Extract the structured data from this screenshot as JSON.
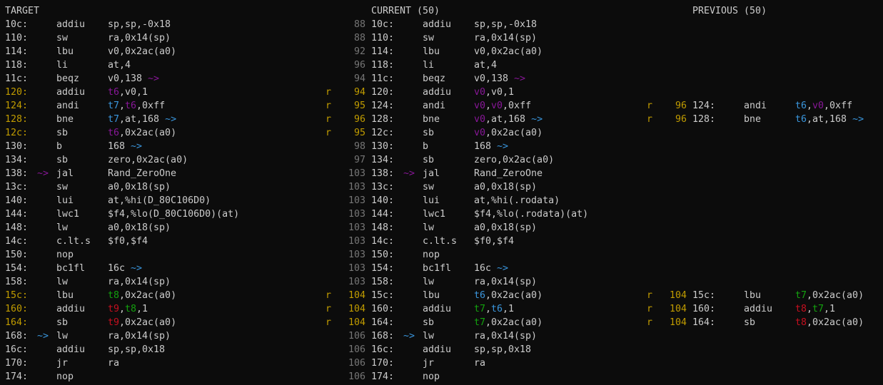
{
  "headers": {
    "target": "TARGET",
    "current": "CURRENT (50)",
    "previous": "PREVIOUS (50)"
  },
  "colors": {
    "text": "#cccccc",
    "gray": "#767676",
    "yellow": "#c19c00",
    "purple": "#881798",
    "blue": "#3a96dd",
    "green": "#13a10e",
    "red": "#c50f1f",
    "background": "#0c0c0c"
  },
  "rows": [
    {
      "target": {
        "addr": "10c:",
        "op": "addiu",
        "args": [
          [
            "sp,sp,-0x18",
            ""
          ]
        ]
      },
      "current": {
        "line": "88",
        "addr": "10c:",
        "op": "addiu",
        "args": [
          [
            "sp,sp,-0x18",
            ""
          ]
        ]
      }
    },
    {
      "target": {
        "addr": "110:",
        "op": "sw",
        "args": [
          [
            "ra,0x14(sp)",
            ""
          ]
        ]
      },
      "current": {
        "line": "88",
        "addr": "110:",
        "op": "sw",
        "args": [
          [
            "ra,0x14(sp)",
            ""
          ]
        ]
      }
    },
    {
      "target": {
        "addr": "114:",
        "op": "lbu",
        "args": [
          [
            "v0,0x2ac(a0)",
            ""
          ]
        ]
      },
      "current": {
        "line": "92",
        "addr": "114:",
        "op": "lbu",
        "args": [
          [
            "v0,0x2ac(a0)",
            ""
          ]
        ]
      }
    },
    {
      "target": {
        "addr": "118:",
        "op": "li",
        "args": [
          [
            "at,4",
            ""
          ]
        ]
      },
      "current": {
        "line": "96",
        "addr": "118:",
        "op": "li",
        "args": [
          [
            "at,4",
            ""
          ]
        ]
      }
    },
    {
      "target": {
        "addr": "11c:",
        "op": "beqz",
        "args": [
          [
            "v0,138 ",
            ""
          ],
          [
            "~>",
            "purple"
          ]
        ]
      },
      "current": {
        "line": "94",
        "addr": "11c:",
        "op": "beqz",
        "args": [
          [
            "v0,138 ",
            ""
          ],
          [
            "~>",
            "purple"
          ]
        ]
      }
    },
    {
      "target": {
        "addr": "120:",
        "hl": true,
        "op": "addiu",
        "args": [
          [
            "t6",
            "purple"
          ],
          [
            ",v0,1",
            ""
          ]
        ]
      },
      "current": {
        "flag": "r",
        "line": "94",
        "addr": "120:",
        "op": "addiu",
        "args": [
          [
            "v0",
            "purple"
          ],
          [
            ",v0,1",
            ""
          ]
        ]
      }
    },
    {
      "target": {
        "addr": "124:",
        "hl": true,
        "op": "andi",
        "args": [
          [
            "t7",
            "blue"
          ],
          [
            ",",
            ""
          ],
          [
            "t6",
            "purple"
          ],
          [
            ",0xff",
            ""
          ]
        ]
      },
      "current": {
        "flag": "r",
        "line": "95",
        "addr": "124:",
        "op": "andi",
        "args": [
          [
            "v0",
            "purple"
          ],
          [
            ",",
            ""
          ],
          [
            "v0",
            "purple"
          ],
          [
            ",0xff",
            ""
          ]
        ]
      },
      "previous": {
        "flag": "r",
        "line": "96",
        "addr": "124:",
        "op": "andi",
        "args": [
          [
            "t6",
            "blue"
          ],
          [
            ",",
            ""
          ],
          [
            "v0",
            "purple"
          ],
          [
            ",0xff",
            ""
          ]
        ]
      }
    },
    {
      "target": {
        "addr": "128:",
        "hl": true,
        "op": "bne",
        "args": [
          [
            "t7",
            "blue"
          ],
          [
            ",at,168 ",
            ""
          ],
          [
            "~>",
            "blue"
          ]
        ]
      },
      "current": {
        "flag": "r",
        "line": "96",
        "addr": "128:",
        "op": "bne",
        "args": [
          [
            "v0",
            "purple"
          ],
          [
            ",at,168 ",
            ""
          ],
          [
            "~>",
            "blue"
          ]
        ]
      },
      "previous": {
        "flag": "r",
        "line": "96",
        "addr": "128:",
        "op": "bne",
        "args": [
          [
            "t6",
            "blue"
          ],
          [
            ",at,168 ",
            ""
          ],
          [
            "~>",
            "blue"
          ]
        ]
      }
    },
    {
      "target": {
        "addr": "12c:",
        "hl": true,
        "op": "sb",
        "args": [
          [
            "t6",
            "purple"
          ],
          [
            ",0x2ac(a0)",
            ""
          ]
        ]
      },
      "current": {
        "flag": "r",
        "line": "95",
        "addr": "12c:",
        "op": "sb",
        "args": [
          [
            "v0",
            "purple"
          ],
          [
            ",0x2ac(a0)",
            ""
          ]
        ]
      }
    },
    {
      "target": {
        "addr": "130:",
        "op": "b",
        "args": [
          [
            "168 ",
            ""
          ],
          [
            "~>",
            "blue"
          ]
        ]
      },
      "current": {
        "line": "98",
        "addr": "130:",
        "op": "b",
        "args": [
          [
            "168 ",
            ""
          ],
          [
            "~>",
            "blue"
          ]
        ]
      }
    },
    {
      "target": {
        "addr": "134:",
        "op": "sb",
        "args": [
          [
            "zero,0x2ac(a0)",
            ""
          ]
        ]
      },
      "current": {
        "line": "97",
        "addr": "134:",
        "op": "sb",
        "args": [
          [
            "zero,0x2ac(a0)",
            ""
          ]
        ]
      }
    },
    {
      "target": {
        "addr": "138:",
        "arrow": "~>",
        "arrowColor": "purple",
        "op": "jal",
        "args": [
          [
            "Rand_ZeroOne",
            ""
          ]
        ]
      },
      "current": {
        "line": "103",
        "addr": "138:",
        "arrow": "~>",
        "arrowColor": "purple",
        "op": "jal",
        "args": [
          [
            "Rand_ZeroOne",
            ""
          ]
        ]
      }
    },
    {
      "target": {
        "addr": "13c:",
        "op": "sw",
        "args": [
          [
            "a0,0x18(sp)",
            ""
          ]
        ]
      },
      "current": {
        "line": "103",
        "addr": "13c:",
        "op": "sw",
        "args": [
          [
            "a0,0x18(sp)",
            ""
          ]
        ]
      }
    },
    {
      "target": {
        "addr": "140:",
        "op": "lui",
        "args": [
          [
            "at,%hi(D_80C106D0)",
            ""
          ]
        ]
      },
      "current": {
        "line": "103",
        "addr": "140:",
        "op": "lui",
        "args": [
          [
            "at,%hi(.rodata)",
            ""
          ]
        ]
      }
    },
    {
      "target": {
        "addr": "144:",
        "op": "lwc1",
        "args": [
          [
            "$f4,%lo(D_80C106D0)(at)",
            ""
          ]
        ]
      },
      "current": {
        "line": "103",
        "addr": "144:",
        "op": "lwc1",
        "args": [
          [
            "$f4,%lo(.rodata)(at)",
            ""
          ]
        ]
      }
    },
    {
      "target": {
        "addr": "148:",
        "op": "lw",
        "args": [
          [
            "a0,0x18(sp)",
            ""
          ]
        ]
      },
      "current": {
        "line": "103",
        "addr": "148:",
        "op": "lw",
        "args": [
          [
            "a0,0x18(sp)",
            ""
          ]
        ]
      }
    },
    {
      "target": {
        "addr": "14c:",
        "op": "c.lt.s",
        "args": [
          [
            "$f0,$f4",
            ""
          ]
        ]
      },
      "current": {
        "line": "103",
        "addr": "14c:",
        "op": "c.lt.s",
        "args": [
          [
            "$f0,$f4",
            ""
          ]
        ]
      }
    },
    {
      "target": {
        "addr": "150:",
        "op": "nop",
        "args": []
      },
      "current": {
        "line": "103",
        "addr": "150:",
        "op": "nop",
        "args": []
      }
    },
    {
      "target": {
        "addr": "154:",
        "op": "bc1fl",
        "args": [
          [
            "16c ",
            ""
          ],
          [
            "~>",
            "blue"
          ]
        ]
      },
      "current": {
        "line": "103",
        "addr": "154:",
        "op": "bc1fl",
        "args": [
          [
            "16c ",
            ""
          ],
          [
            "~>",
            "blue"
          ]
        ]
      }
    },
    {
      "target": {
        "addr": "158:",
        "op": "lw",
        "args": [
          [
            "ra,0x14(sp)",
            ""
          ]
        ]
      },
      "current": {
        "line": "103",
        "addr": "158:",
        "op": "lw",
        "args": [
          [
            "ra,0x14(sp)",
            ""
          ]
        ]
      }
    },
    {
      "target": {
        "addr": "15c:",
        "hl": true,
        "op": "lbu",
        "args": [
          [
            "t8",
            "green"
          ],
          [
            ",0x2ac(a0)",
            ""
          ]
        ]
      },
      "current": {
        "flag": "r",
        "line": "104",
        "addr": "15c:",
        "op": "lbu",
        "args": [
          [
            "t6",
            "blue"
          ],
          [
            ",0x2ac(a0)",
            ""
          ]
        ]
      },
      "previous": {
        "flag": "r",
        "line": "104",
        "addr": "15c:",
        "op": "lbu",
        "args": [
          [
            "t7",
            "green"
          ],
          [
            ",0x2ac(a0)",
            ""
          ]
        ]
      }
    },
    {
      "target": {
        "addr": "160:",
        "hl": true,
        "op": "addiu",
        "args": [
          [
            "t9",
            "red"
          ],
          [
            ",",
            ""
          ],
          [
            "t8",
            "green"
          ],
          [
            ",1",
            ""
          ]
        ]
      },
      "current": {
        "flag": "r",
        "line": "104",
        "addr": "160:",
        "op": "addiu",
        "args": [
          [
            "t7",
            "green"
          ],
          [
            ",",
            ""
          ],
          [
            "t6",
            "blue"
          ],
          [
            ",1",
            ""
          ]
        ]
      },
      "previous": {
        "flag": "r",
        "line": "104",
        "addr": "160:",
        "op": "addiu",
        "args": [
          [
            "t8",
            "red"
          ],
          [
            ",",
            ""
          ],
          [
            "t7",
            "green"
          ],
          [
            ",1",
            ""
          ]
        ]
      }
    },
    {
      "target": {
        "addr": "164:",
        "hl": true,
        "op": "sb",
        "args": [
          [
            "t9",
            "red"
          ],
          [
            ",0x2ac(a0)",
            ""
          ]
        ]
      },
      "current": {
        "flag": "r",
        "line": "104",
        "addr": "164:",
        "op": "sb",
        "args": [
          [
            "t7",
            "green"
          ],
          [
            ",0x2ac(a0)",
            ""
          ]
        ]
      },
      "previous": {
        "flag": "r",
        "line": "104",
        "addr": "164:",
        "op": "sb",
        "args": [
          [
            "t8",
            "red"
          ],
          [
            ",0x2ac(a0)",
            ""
          ]
        ]
      }
    },
    {
      "target": {
        "addr": "168:",
        "arrow": "~>",
        "arrowColor": "blue",
        "op": "lw",
        "args": [
          [
            "ra,0x14(sp)",
            ""
          ]
        ]
      },
      "current": {
        "line": "106",
        "addr": "168:",
        "arrow": "~>",
        "arrowColor": "blue",
        "op": "lw",
        "args": [
          [
            "ra,0x14(sp)",
            ""
          ]
        ]
      }
    },
    {
      "target": {
        "addr": "16c:",
        "op": "addiu",
        "args": [
          [
            "sp,sp,0x18",
            ""
          ]
        ]
      },
      "current": {
        "line": "106",
        "addr": "16c:",
        "op": "addiu",
        "args": [
          [
            "sp,sp,0x18",
            ""
          ]
        ]
      }
    },
    {
      "target": {
        "addr": "170:",
        "op": "jr",
        "args": [
          [
            "ra",
            ""
          ]
        ]
      },
      "current": {
        "line": "106",
        "addr": "170:",
        "op": "jr",
        "args": [
          [
            "ra",
            ""
          ]
        ]
      }
    },
    {
      "target": {
        "addr": "174:",
        "op": "nop",
        "args": []
      },
      "current": {
        "line": "106",
        "addr": "174:",
        "op": "nop",
        "args": []
      }
    }
  ]
}
